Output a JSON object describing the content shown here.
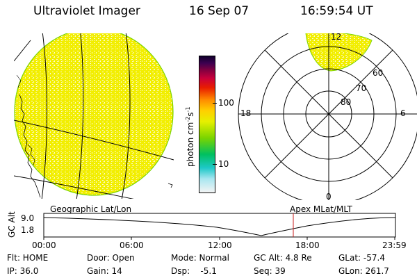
{
  "header": {
    "instrument": "Ultraviolet Imager",
    "date": "16 Sep 07",
    "time": "16:59:54 UT"
  },
  "colorbar": {
    "label": "photon cm",
    "label_sup1": "-2",
    "label_mid": "s",
    "label_sup2": "-1",
    "ticks": [
      "100",
      "10"
    ],
    "scale": "log",
    "colors": [
      "#eeeeee",
      "#a8e6f0",
      "#1ec8c8",
      "#00c060",
      "#7ad400",
      "#e6f000",
      "#ffd000",
      "#ff8c00",
      "#e81c00",
      "#c8003c",
      "#800040",
      "#3c0050",
      "#10002a"
    ]
  },
  "polar_plot": {
    "mlt_labels": {
      "top": "12",
      "left": "18",
      "right": "6",
      "bottom": "0"
    },
    "mlat_labels": [
      "60",
      "70",
      "80"
    ]
  },
  "orbit_panel": {
    "left_label": "Geographic Lat/Lon",
    "right_label": "Apex MLat/MLT",
    "axis_title": "GC Alt",
    "y_ticks": [
      "9.0",
      "1.8"
    ],
    "x_ticks": [
      "00:00",
      "06:00",
      "12:00",
      "18:00",
      "23:59"
    ],
    "current_time_color": "#c81e1e"
  },
  "status": {
    "flt": "Flt: HOME",
    "ip": "IP: 36.0",
    "door": "Door: Open",
    "gain": "Gain: 14",
    "mode": "Mode: Normal",
    "dsp": "Dsp:    -5.1",
    "gcalt": "GC Alt: 4.8 Re",
    "seq": "Seq: 39",
    "glat": "GLat: -57.4",
    "glon": "GLon: 261.7"
  },
  "colors": {
    "emission_yellow": "#f4f000",
    "emission_light": "#fbfbd0",
    "limb_green": "#7ad400"
  }
}
